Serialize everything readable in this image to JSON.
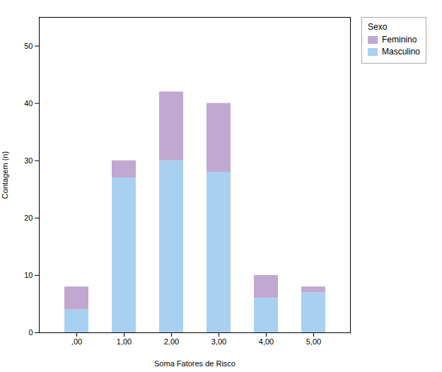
{
  "chart_data": {
    "type": "bar",
    "stacked": true,
    "xlabel": "Soma Fatores de Risco",
    "ylabel": "Contagem (n)",
    "categories": [
      ",00",
      "1,00",
      "2,00",
      "3,00",
      "4,00",
      "5,00"
    ],
    "series": [
      {
        "name": "Masculino",
        "color": "#A8D0F0",
        "values": [
          4,
          27,
          30,
          28,
          6,
          7
        ]
      },
      {
        "name": "Feminino",
        "color": "#C0A8D0",
        "values": [
          4,
          3,
          12,
          12,
          4,
          1
        ]
      }
    ],
    "ylim": [
      0,
      55
    ],
    "yticks": [
      0,
      10,
      20,
      30,
      40,
      50
    ],
    "grid": false,
    "legend": "right",
    "legend_title": "Sexo"
  }
}
